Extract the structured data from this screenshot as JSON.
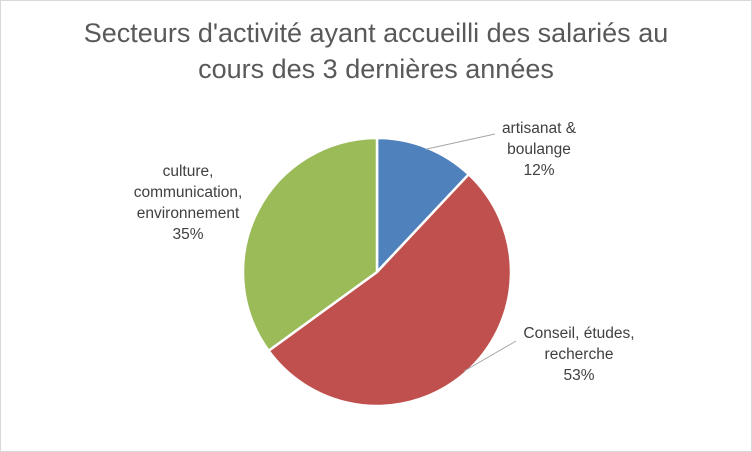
{
  "chart_data": {
    "type": "pie",
    "title_lines": [
      "Secteurs d'activité ayant accueilli des salariés au",
      "cours des 3 dernières années"
    ],
    "slices": [
      {
        "label_lines": [
          "artisanat &",
          "boulange"
        ],
        "value": 12,
        "value_label": "12%",
        "color": "#4F81BD"
      },
      {
        "label_lines": [
          "Conseil, études,",
          "recherche"
        ],
        "value": 53,
        "value_label": "53%",
        "color": "#C0504D"
      },
      {
        "label_lines": [
          "culture,",
          "communication,",
          "environnement"
        ],
        "value": 35,
        "value_label": "35%",
        "color": "#9BBB59"
      }
    ],
    "legend": "none"
  }
}
